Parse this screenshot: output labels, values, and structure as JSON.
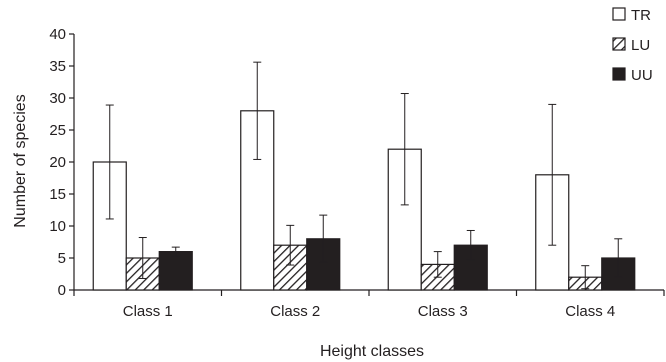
{
  "chart_data": {
    "type": "bar",
    "categories": [
      "Class 1",
      "Class 2",
      "Class 3",
      "Class 4"
    ],
    "series": [
      {
        "name": "TR",
        "values": [
          20,
          28,
          22,
          18
        ],
        "error": [
          8.9,
          7.6,
          8.7,
          11.0
        ],
        "style": "white"
      },
      {
        "name": "LU",
        "values": [
          5,
          7,
          4,
          2
        ],
        "error": [
          3.2,
          3.1,
          2.0,
          1.8
        ],
        "style": "hatched"
      },
      {
        "name": "UU",
        "values": [
          6,
          8,
          7,
          5
        ],
        "error": [
          0.7,
          3.7,
          2.3,
          3.0
        ],
        "style": "black"
      }
    ],
    "xlabel": "Height classes",
    "ylabel": "Number of species",
    "ylim": [
      0,
      40
    ],
    "yticks": [
      "0",
      "5",
      "10",
      "15",
      "20",
      "25",
      "30",
      "35",
      "40"
    ],
    "grid": false,
    "legend_position": "top-right",
    "colors": {
      "TR": "#ffffff",
      "LU": "#ffffff",
      "UU": "#231f20",
      "stroke": "#231f20"
    }
  }
}
